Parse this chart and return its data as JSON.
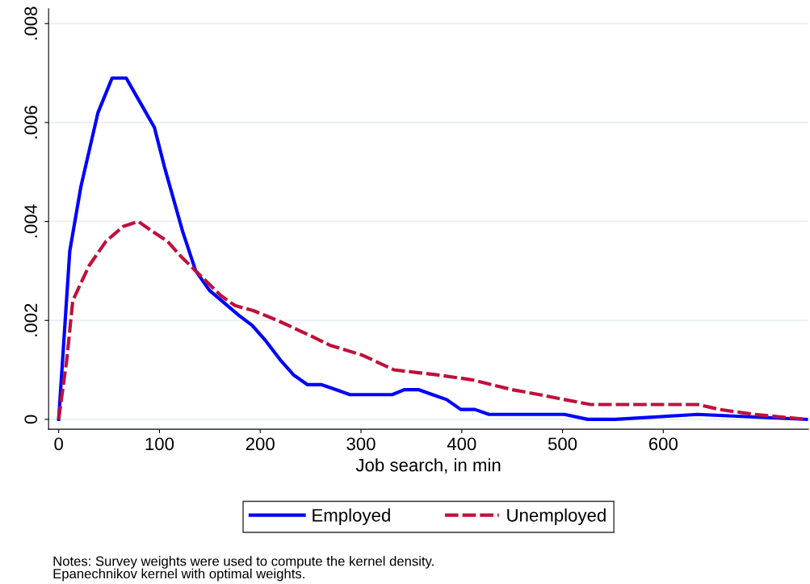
{
  "chart_data": {
    "type": "line",
    "xlabel": "Job search, in min",
    "xlim": [
      -10,
      744
    ],
    "ylim": [
      -0.0002,
      0.0083
    ],
    "xticks": [
      0,
      100,
      200,
      300,
      400,
      500,
      600
    ],
    "yticks": [
      {
        "value": 0,
        "label": "0"
      },
      {
        "value": 0.002,
        "label": ".002"
      },
      {
        "value": 0.004,
        "label": ".004"
      },
      {
        "value": 0.006,
        "label": ".006"
      },
      {
        "value": 0.008,
        "label": ".008"
      }
    ],
    "grid": "y",
    "legend": "bottom",
    "series": [
      {
        "name": "Employed",
        "color": "#0000ff",
        "line_style": "solid",
        "x": [
          0,
          11,
          22,
          39,
          53,
          67,
          81,
          95,
          105,
          123,
          136,
          150,
          179,
          192,
          205,
          220,
          233,
          247,
          261,
          275,
          289,
          302,
          317,
          331,
          343,
          357,
          371,
          385,
          399,
          413,
          427,
          454,
          469,
          482,
          502,
          525,
          552,
          634,
          742
        ],
        "values": [
          0,
          0.0034,
          0.0047,
          0.0062,
          0.0069,
          0.0069,
          0.0064,
          0.0059,
          0.0051,
          0.0038,
          0.003,
          0.0026,
          0.0021,
          0.0019,
          0.0016,
          0.0012,
          0.0009,
          0.0007,
          0.0007,
          0.0006,
          0.0005,
          0.0005,
          0.0005,
          0.0005,
          0.0006,
          0.0006,
          0.0005,
          0.0004,
          0.0002,
          0.0002,
          0.0001,
          0.0001,
          0.0001,
          0.0001,
          0.0001,
          0,
          0,
          0.0001,
          0
        ]
      },
      {
        "name": "Unemployed",
        "color": "#c0103c",
        "line_style": "dashed",
        "x": [
          0,
          8,
          14,
          30,
          47,
          64,
          79,
          93,
          108,
          121,
          136,
          151,
          161,
          175,
          193,
          217,
          249,
          269,
          301,
          333,
          375,
          410,
          450,
          477,
          502,
          528,
          552,
          605,
          634,
          656,
          690,
          742
        ],
        "values": [
          0,
          0.0012,
          0.0024,
          0.0031,
          0.0036,
          0.0039,
          0.004,
          0.0038,
          0.0036,
          0.0033,
          0.003,
          0.0027,
          0.0025,
          0.0023,
          0.0022,
          0.002,
          0.0017,
          0.0015,
          0.0013,
          0.001,
          0.0009,
          0.0008,
          0.0006,
          0.0005,
          0.0004,
          0.0003,
          0.0003,
          0.0003,
          0.0003,
          0.0002,
          0.0001,
          0
        ]
      }
    ],
    "annotations": [
      "Notes: Survey weights were used to compute the kernel density.\nEpanechnikov kernel with optimal weights."
    ]
  }
}
